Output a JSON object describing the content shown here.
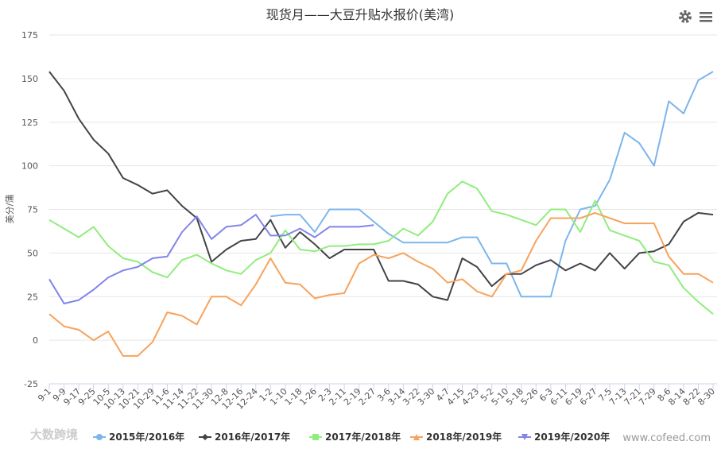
{
  "chart_data": {
    "type": "line",
    "title": "现货月——大豆升贴水报价(美湾)",
    "y_label": "美分/蒲",
    "categories": [
      "9-1",
      "9-9",
      "9-17",
      "9-25",
      "10-5",
      "10-13",
      "10-21",
      "10-29",
      "11-6",
      "11-14",
      "11-22",
      "11-30",
      "12-8",
      "12-16",
      "12-24",
      "1-2",
      "1-10",
      "1-18",
      "1-26",
      "2-3",
      "2-11",
      "2-19",
      "2-27",
      "3-6",
      "3-14",
      "3-22",
      "3-30",
      "4-7",
      "4-15",
      "4-23",
      "5-2",
      "5-10",
      "5-18",
      "5-26",
      "6-3",
      "6-11",
      "6-19",
      "6-27",
      "7-5",
      "7-13",
      "7-21",
      "7-29",
      "8-6",
      "8-14",
      "8-22",
      "8-30"
    ],
    "series": [
      {
        "name": "2015年/2016年",
        "color": "#7cb5ec",
        "marker": "circle",
        "values": [
          null,
          null,
          null,
          null,
          null,
          null,
          null,
          null,
          null,
          null,
          null,
          null,
          null,
          null,
          null,
          71,
          72,
          72,
          62,
          75,
          75,
          75,
          68,
          61,
          56,
          56,
          56,
          56,
          59,
          59,
          44,
          44,
          25,
          25,
          25,
          57,
          75,
          77,
          92,
          119,
          113,
          100,
          137,
          130,
          149,
          154
        ]
      },
      {
        "name": "2016年/2017年",
        "color": "#434348",
        "marker": "diamond",
        "values": [
          154,
          143,
          127,
          115,
          107,
          93,
          89,
          84,
          86,
          77,
          70,
          45,
          52,
          57,
          58,
          69,
          53,
          62,
          55,
          47,
          52,
          52,
          52,
          34,
          34,
          32,
          25,
          23,
          47,
          42,
          31,
          38,
          38,
          43,
          46,
          40,
          44,
          40,
          50,
          41,
          50,
          51,
          55,
          68,
          73,
          72
        ]
      },
      {
        "name": "2017年/2018年",
        "color": "#90ed7d",
        "marker": "square",
        "values": [
          69,
          64,
          59,
          65,
          54,
          47,
          45,
          39,
          36,
          46,
          49,
          44,
          40,
          38,
          46,
          50,
          63,
          52,
          51,
          54,
          54,
          55,
          55,
          57,
          64,
          60,
          68,
          84,
          91,
          87,
          74,
          72,
          69,
          66,
          75,
          75,
          62,
          80,
          63,
          60,
          57,
          45,
          43,
          30,
          22,
          15
        ]
      },
      {
        "name": "2018年/2019年",
        "color": "#f7a35c",
        "marker": "triangle",
        "values": [
          15,
          8,
          6,
          0,
          5,
          -9,
          -9,
          -1,
          16,
          14,
          9,
          25,
          25,
          20,
          32,
          47,
          33,
          32,
          24,
          26,
          27,
          44,
          49,
          47,
          50,
          45,
          41,
          33,
          35,
          28,
          25,
          38,
          40,
          57,
          70,
          70,
          70,
          73,
          70,
          67,
          67,
          67,
          48,
          38,
          38,
          33
        ]
      },
      {
        "name": "2019年/2020年",
        "color": "#8085e9",
        "marker": "triangle-down",
        "values": [
          35,
          21,
          23,
          29,
          36,
          40,
          42,
          47,
          48,
          62,
          71,
          58,
          65,
          66,
          72,
          60,
          60,
          64,
          59,
          65,
          65,
          65,
          66,
          null,
          null,
          null,
          null,
          null,
          null,
          null,
          null,
          null,
          null,
          null,
          null,
          null,
          null,
          null,
          null,
          null,
          null,
          null,
          null,
          null,
          null,
          null
        ]
      }
    ],
    "ylim": [
      -25,
      175
    ],
    "yticks": [
      -25,
      0,
      25,
      50,
      75,
      100,
      125,
      150,
      175
    ],
    "grid": true,
    "legend": "bottom",
    "watermarks": [
      "大数跨境",
      "www.cofeed.com"
    ]
  }
}
